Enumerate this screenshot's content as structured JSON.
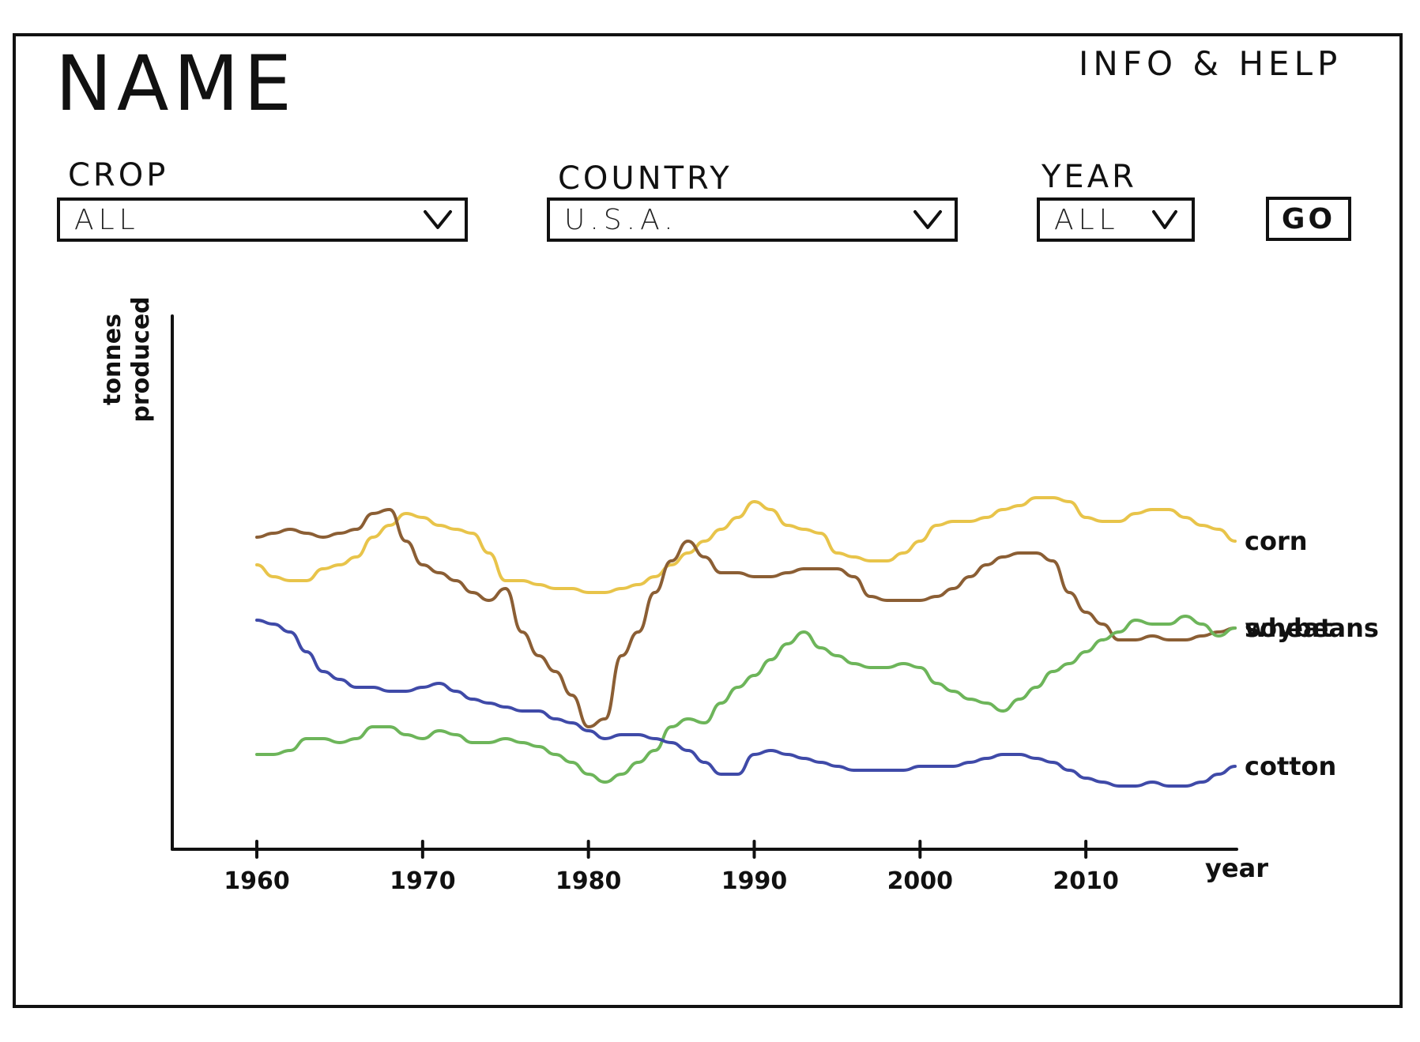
{
  "header": {
    "title": "NAME",
    "help_link": "INFO & HELP"
  },
  "filters": {
    "crop": {
      "label": "CROP",
      "value": "ALL"
    },
    "country": {
      "label": "COUNTRY",
      "value": "U.S.A."
    },
    "year": {
      "label": "YEAR",
      "value": "ALL"
    },
    "go_label": "GO"
  },
  "icons": {
    "dropdown": "chevron-down-icon"
  },
  "chart_data": {
    "type": "line",
    "title": "",
    "xlabel": "year",
    "ylabel": "tonnes produced",
    "xlim": [
      1955,
      2019
    ],
    "ylim": [
      0,
      100
    ],
    "x_ticks": [
      1960,
      1970,
      1980,
      1990,
      2000,
      2010
    ],
    "grid": false,
    "legend": "end-of-line labels",
    "series": [
      {
        "name": "corn",
        "color": "#e8c44a",
        "points": [
          [
            1960,
            61
          ],
          [
            1961,
            58
          ],
          [
            1962,
            57
          ],
          [
            1963,
            57
          ],
          [
            1964,
            60
          ],
          [
            1965,
            61
          ],
          [
            1966,
            63
          ],
          [
            1967,
            68
          ],
          [
            1968,
            71
          ],
          [
            1969,
            74
          ],
          [
            1970,
            73
          ],
          [
            1971,
            71
          ],
          [
            1972,
            70
          ],
          [
            1973,
            69
          ],
          [
            1974,
            64
          ],
          [
            1975,
            57
          ],
          [
            1976,
            57
          ],
          [
            1977,
            56
          ],
          [
            1978,
            55
          ],
          [
            1979,
            55
          ],
          [
            1980,
            54
          ],
          [
            1981,
            54
          ],
          [
            1982,
            55
          ],
          [
            1983,
            56
          ],
          [
            1984,
            58
          ],
          [
            1985,
            61
          ],
          [
            1986,
            64
          ],
          [
            1987,
            67
          ],
          [
            1988,
            70
          ],
          [
            1989,
            73
          ],
          [
            1990,
            77
          ],
          [
            1991,
            75
          ],
          [
            1992,
            71
          ],
          [
            1993,
            70
          ],
          [
            1994,
            69
          ],
          [
            1995,
            64
          ],
          [
            1996,
            63
          ],
          [
            1997,
            62
          ],
          [
            1998,
            62
          ],
          [
            1999,
            64
          ],
          [
            2000,
            67
          ],
          [
            2001,
            71
          ],
          [
            2002,
            72
          ],
          [
            2003,
            72
          ],
          [
            2004,
            73
          ],
          [
            2005,
            75
          ],
          [
            2006,
            76
          ],
          [
            2007,
            78
          ],
          [
            2008,
            78
          ],
          [
            2009,
            77
          ],
          [
            2010,
            73
          ],
          [
            2011,
            72
          ],
          [
            2012,
            72
          ],
          [
            2013,
            74
          ],
          [
            2014,
            75
          ],
          [
            2015,
            75
          ],
          [
            2016,
            73
          ],
          [
            2017,
            71
          ],
          [
            2018,
            70
          ],
          [
            2019,
            67
          ]
        ]
      },
      {
        "name": "wheat",
        "color": "#8b5e34",
        "points": [
          [
            1960,
            68
          ],
          [
            1961,
            69
          ],
          [
            1962,
            70
          ],
          [
            1963,
            69
          ],
          [
            1964,
            68
          ],
          [
            1965,
            69
          ],
          [
            1966,
            70
          ],
          [
            1967,
            74
          ],
          [
            1968,
            75
          ],
          [
            1969,
            67
          ],
          [
            1970,
            61
          ],
          [
            1971,
            59
          ],
          [
            1972,
            57
          ],
          [
            1973,
            54
          ],
          [
            1974,
            52
          ],
          [
            1975,
            55
          ],
          [
            1976,
            44
          ],
          [
            1977,
            38
          ],
          [
            1978,
            34
          ],
          [
            1979,
            28
          ],
          [
            1980,
            20
          ],
          [
            1981,
            22
          ],
          [
            1982,
            38
          ],
          [
            1983,
            44
          ],
          [
            1984,
            54
          ],
          [
            1985,
            62
          ],
          [
            1986,
            67
          ],
          [
            1987,
            63
          ],
          [
            1988,
            59
          ],
          [
            1989,
            59
          ],
          [
            1990,
            58
          ],
          [
            1991,
            58
          ],
          [
            1992,
            59
          ],
          [
            1993,
            60
          ],
          [
            1994,
            60
          ],
          [
            1995,
            60
          ],
          [
            1996,
            58
          ],
          [
            1997,
            53
          ],
          [
            1998,
            52
          ],
          [
            1999,
            52
          ],
          [
            2000,
            52
          ],
          [
            2001,
            53
          ],
          [
            2002,
            55
          ],
          [
            2003,
            58
          ],
          [
            2004,
            61
          ],
          [
            2005,
            63
          ],
          [
            2006,
            64
          ],
          [
            2007,
            64
          ],
          [
            2008,
            62
          ],
          [
            2009,
            54
          ],
          [
            2010,
            49
          ],
          [
            2011,
            46
          ],
          [
            2012,
            42
          ],
          [
            2013,
            42
          ],
          [
            2014,
            43
          ],
          [
            2015,
            42
          ],
          [
            2016,
            42
          ],
          [
            2017,
            43
          ],
          [
            2018,
            44
          ],
          [
            2019,
            45
          ]
        ]
      },
      {
        "name": "soybeans",
        "color": "#6db55a",
        "points": [
          [
            1960,
            13
          ],
          [
            1961,
            13
          ],
          [
            1962,
            14
          ],
          [
            1963,
            17
          ],
          [
            1964,
            17
          ],
          [
            1965,
            16
          ],
          [
            1966,
            17
          ],
          [
            1967,
            20
          ],
          [
            1968,
            20
          ],
          [
            1969,
            18
          ],
          [
            1970,
            17
          ],
          [
            1971,
            19
          ],
          [
            1972,
            18
          ],
          [
            1973,
            16
          ],
          [
            1974,
            16
          ],
          [
            1975,
            17
          ],
          [
            1976,
            16
          ],
          [
            1977,
            15
          ],
          [
            1978,
            13
          ],
          [
            1979,
            11
          ],
          [
            1980,
            8
          ],
          [
            1981,
            6
          ],
          [
            1982,
            8
          ],
          [
            1983,
            11
          ],
          [
            1984,
            14
          ],
          [
            1985,
            20
          ],
          [
            1986,
            22
          ],
          [
            1987,
            21
          ],
          [
            1988,
            26
          ],
          [
            1989,
            30
          ],
          [
            1990,
            33
          ],
          [
            1991,
            37
          ],
          [
            1992,
            41
          ],
          [
            1993,
            44
          ],
          [
            1994,
            40
          ],
          [
            1995,
            38
          ],
          [
            1996,
            36
          ],
          [
            1997,
            35
          ],
          [
            1998,
            35
          ],
          [
            1999,
            36
          ],
          [
            2000,
            35
          ],
          [
            2001,
            31
          ],
          [
            2002,
            29
          ],
          [
            2003,
            27
          ],
          [
            2004,
            26
          ],
          [
            2005,
            24
          ],
          [
            2006,
            27
          ],
          [
            2007,
            30
          ],
          [
            2008,
            34
          ],
          [
            2009,
            36
          ],
          [
            2010,
            39
          ],
          [
            2011,
            42
          ],
          [
            2012,
            44
          ],
          [
            2013,
            47
          ],
          [
            2014,
            46
          ],
          [
            2015,
            46
          ],
          [
            2016,
            48
          ],
          [
            2017,
            46
          ],
          [
            2018,
            43
          ],
          [
            2019,
            45
          ]
        ]
      },
      {
        "name": "cotton",
        "color": "#3f4aa8",
        "points": [
          [
            1960,
            47
          ],
          [
            1961,
            46
          ],
          [
            1962,
            44
          ],
          [
            1963,
            39
          ],
          [
            1964,
            34
          ],
          [
            1965,
            32
          ],
          [
            1966,
            30
          ],
          [
            1967,
            30
          ],
          [
            1968,
            29
          ],
          [
            1969,
            29
          ],
          [
            1970,
            30
          ],
          [
            1971,
            31
          ],
          [
            1972,
            29
          ],
          [
            1973,
            27
          ],
          [
            1974,
            26
          ],
          [
            1975,
            25
          ],
          [
            1976,
            24
          ],
          [
            1977,
            24
          ],
          [
            1978,
            22
          ],
          [
            1979,
            21
          ],
          [
            1980,
            19
          ],
          [
            1981,
            17
          ],
          [
            1982,
            18
          ],
          [
            1983,
            18
          ],
          [
            1984,
            17
          ],
          [
            1985,
            16
          ],
          [
            1986,
            14
          ],
          [
            1987,
            11
          ],
          [
            1988,
            8
          ],
          [
            1989,
            8
          ],
          [
            1990,
            13
          ],
          [
            1991,
            14
          ],
          [
            1992,
            13
          ],
          [
            1993,
            12
          ],
          [
            1994,
            11
          ],
          [
            1995,
            10
          ],
          [
            1996,
            9
          ],
          [
            1997,
            9
          ],
          [
            1998,
            9
          ],
          [
            1999,
            9
          ],
          [
            2000,
            10
          ],
          [
            2001,
            10
          ],
          [
            2002,
            10
          ],
          [
            2003,
            11
          ],
          [
            2004,
            12
          ],
          [
            2005,
            13
          ],
          [
            2006,
            13
          ],
          [
            2007,
            12
          ],
          [
            2008,
            11
          ],
          [
            2009,
            9
          ],
          [
            2010,
            7
          ],
          [
            2011,
            6
          ],
          [
            2012,
            5
          ],
          [
            2013,
            5
          ],
          [
            2014,
            6
          ],
          [
            2015,
            5
          ],
          [
            2016,
            5
          ],
          [
            2017,
            6
          ],
          [
            2018,
            8
          ],
          [
            2019,
            10
          ]
        ]
      }
    ]
  }
}
